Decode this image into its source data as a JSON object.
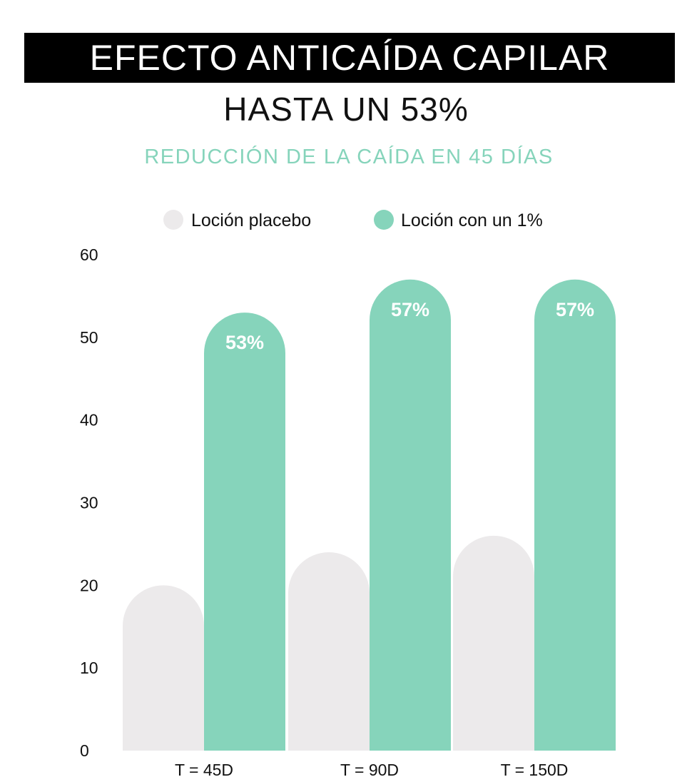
{
  "colors": {
    "banner_bg": "#000000",
    "banner_text": "#ffffff",
    "accent": "#86d4bb",
    "placebo": "#eceaeb",
    "treatment": "#86d4bb"
  },
  "chart_data": {
    "type": "bar",
    "title": "EFECTO ANTICAÍDA CAPILAR",
    "subtitle": "HASTA UN 53%",
    "caption": "REDUCCIÓN DE LA CAÍDA EN 45 DÍAS",
    "categories": [
      "T = 45D",
      "T = 90D",
      "T = 150D"
    ],
    "series": [
      {
        "name": "Loción placebo",
        "values": [
          20,
          24,
          26
        ],
        "color": "#eceaeb"
      },
      {
        "name": "Loción con un 1%",
        "values": [
          53,
          57,
          57
        ],
        "labels": [
          "53%",
          "57%",
          "57%"
        ],
        "color": "#86d4bb"
      }
    ],
    "yticks": [
      "0",
      "10",
      "20",
      "30",
      "40",
      "50",
      "60"
    ],
    "ylim": [
      0,
      60
    ],
    "xlabel": "",
    "ylabel": "",
    "grid": false,
    "legend_position": "top-center"
  }
}
